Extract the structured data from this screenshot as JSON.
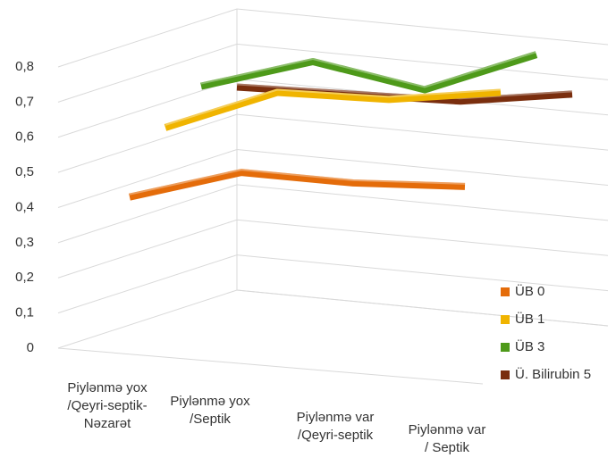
{
  "chart_data": {
    "type": "line3d",
    "categories": [
      "Piylənmə yox\n/Qeyri-septik-\nNəzarət",
      "Piylənmə yox\n/Septik",
      "Piylənmə var\n/Qeyri-septik",
      "Piylənmə var\n/ Septik"
    ],
    "series": [
      {
        "name": "ÜB 0",
        "color": "#e46c0a",
        "values": [
          0.43,
          0.5,
          0.47,
          0.46
        ]
      },
      {
        "name": "ÜB 1",
        "color": "#f0b400",
        "values": [
          0.62,
          0.72,
          0.7,
          0.72
        ]
      },
      {
        "name": "ÜB 3",
        "color": "#4e9a1a",
        "values": [
          0.73,
          0.8,
          0.72,
          0.82
        ]
      },
      {
        "name": "Ü. Bilirubin 5",
        "color": "#7a2e0e",
        "values": [
          0.72,
          0.7,
          0.68,
          0.7
        ]
      }
    ],
    "ylim": [
      0,
      0.8
    ],
    "yticks": [
      {
        "value": 0,
        "label": "0"
      },
      {
        "value": 0.1,
        "label": "0,1"
      },
      {
        "value": 0.2,
        "label": "0,2"
      },
      {
        "value": 0.3,
        "label": "0,3"
      },
      {
        "value": 0.4,
        "label": "0,4"
      },
      {
        "value": 0.5,
        "label": "0,5"
      },
      {
        "value": 0.6,
        "label": "0,6"
      },
      {
        "value": 0.7,
        "label": "0,7"
      },
      {
        "value": 0.8,
        "label": "0,8"
      }
    ],
    "grid": true,
    "legend": "lower right"
  }
}
